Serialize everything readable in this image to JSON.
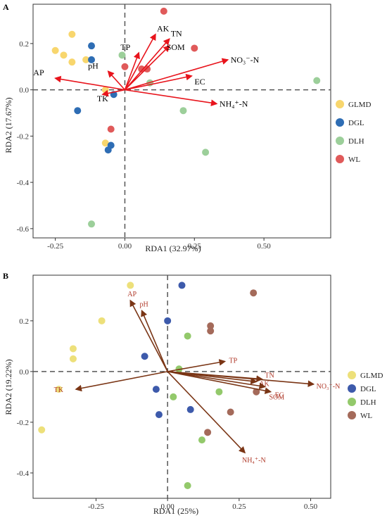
{
  "chart_data": [
    {
      "type": "scatter",
      "panel_label": "A",
      "xlabel": "RDA1 (32.97%)",
      "ylabel": "RDA2 (17.67%)",
      "xlim": [
        -0.33,
        0.74
      ],
      "ylim": [
        -0.64,
        0.37
      ],
      "xticks": [
        -0.25,
        0.0,
        0.25,
        0.5
      ],
      "xtick_labels": [
        "-0.25",
        "0.00",
        "0.25",
        "0.50"
      ],
      "yticks": [
        -0.6,
        -0.4,
        -0.2,
        0.0,
        0.2
      ],
      "ytick_labels": [
        "-0.6",
        "-0.4",
        "-0.2",
        "0.0",
        "0.2"
      ],
      "reference_lines": {
        "x": 0,
        "y": 0,
        "style": "dashed"
      },
      "legend_position": "right",
      "arrow_color": "#e8141c",
      "series": [
        {
          "name": "GLMD",
          "color": "#f8d66d",
          "points": [
            [
              -0.19,
              0.24
            ],
            [
              -0.25,
              0.17
            ],
            [
              -0.22,
              0.15
            ],
            [
              -0.19,
              0.12
            ],
            [
              -0.14,
              0.13
            ],
            [
              -0.07,
              -0.23
            ],
            [
              -0.07,
              0.0
            ]
          ]
        },
        {
          "name": "DGL",
          "color": "#2e6db4",
          "points": [
            [
              -0.12,
              0.19
            ],
            [
              -0.12,
              0.13
            ],
            [
              -0.04,
              -0.02
            ],
            [
              -0.17,
              -0.09
            ],
            [
              -0.05,
              -0.24
            ],
            [
              -0.06,
              -0.26
            ]
          ]
        },
        {
          "name": "DLH",
          "color": "#9ccf9a",
          "points": [
            [
              -0.01,
              0.15
            ],
            [
              0.09,
              0.03
            ],
            [
              0.21,
              -0.09
            ],
            [
              0.29,
              -0.27
            ],
            [
              0.69,
              0.04
            ],
            [
              -0.12,
              -0.58
            ]
          ]
        },
        {
          "name": "WL",
          "color": "#e05a5a",
          "points": [
            [
              0.14,
              0.34
            ],
            [
              0.25,
              0.18
            ],
            [
              0.06,
              0.09
            ],
            [
              0.08,
              0.09
            ],
            [
              0.0,
              0.1
            ],
            [
              -0.05,
              -0.17
            ]
          ]
        }
      ],
      "arrows": [
        {
          "label": "AK",
          "x": 0.11,
          "y": 0.24
        },
        {
          "label": "TN",
          "x": 0.16,
          "y": 0.22
        },
        {
          "label": "SOM",
          "x": 0.16,
          "y": 0.19
        },
        {
          "label": "TP",
          "x": 0.05,
          "y": 0.16
        },
        {
          "label": "NO₃⁻-N",
          "x": 0.37,
          "y": 0.13
        },
        {
          "label": "pH",
          "x": -0.06,
          "y": 0.08
        },
        {
          "label": "EC",
          "x": 0.24,
          "y": 0.06
        },
        {
          "label": "AP",
          "x": -0.25,
          "y": 0.05
        },
        {
          "label": "TK",
          "x": -0.08,
          "y": -0.02
        },
        {
          "label": "NH₄⁺-N",
          "x": 0.33,
          "y": -0.06
        }
      ]
    },
    {
      "type": "scatter",
      "panel_label": "B",
      "xlabel": "RDA1 (25%)",
      "ylabel": "RDA2 (19.22%)",
      "xlim": [
        -0.47,
        0.57
      ],
      "ylim": [
        -0.5,
        0.38
      ],
      "xticks": [
        -0.25,
        0.0,
        0.25,
        0.5
      ],
      "xtick_labels": [
        "-0.25",
        "0.00",
        "0.25",
        "0.50"
      ],
      "yticks": [
        -0.4,
        -0.2,
        0.0,
        0.2
      ],
      "ytick_labels": [
        "-0.4",
        "-0.2",
        "0.0",
        "0.2"
      ],
      "reference_lines": {
        "x": 0,
        "y": 0,
        "style": "dashed"
      },
      "legend_position": "right",
      "arrow_color": "#7a3515",
      "series": [
        {
          "name": "GLMD",
          "color": "#ede07a",
          "points": [
            [
              -0.13,
              0.34
            ],
            [
              -0.23,
              0.2
            ],
            [
              -0.33,
              0.09
            ],
            [
              -0.33,
              0.05
            ],
            [
              -0.38,
              -0.07
            ],
            [
              -0.44,
              -0.23
            ]
          ]
        },
        {
          "name": "DGL",
          "color": "#3d5aab",
          "points": [
            [
              0.05,
              0.34
            ],
            [
              0.0,
              0.2
            ],
            [
              -0.08,
              0.06
            ],
            [
              -0.04,
              -0.07
            ],
            [
              -0.03,
              -0.17
            ],
            [
              0.08,
              -0.15
            ]
          ]
        },
        {
          "name": "DLH",
          "color": "#93c96b",
          "points": [
            [
              0.07,
              0.14
            ],
            [
              0.04,
              0.01
            ],
            [
              0.18,
              -0.08
            ],
            [
              0.02,
              -0.1
            ],
            [
              0.12,
              -0.27
            ],
            [
              0.07,
              -0.45
            ]
          ]
        },
        {
          "name": "WL",
          "color": "#a46a5a",
          "points": [
            [
              0.3,
              0.31
            ],
            [
              0.15,
              0.18
            ],
            [
              0.15,
              0.16
            ],
            [
              0.31,
              -0.08
            ],
            [
              0.22,
              -0.16
            ],
            [
              0.14,
              -0.24
            ]
          ]
        }
      ],
      "arrows": [
        {
          "label": "AP",
          "x": -0.13,
          "y": 0.28
        },
        {
          "label": "pH",
          "x": -0.09,
          "y": 0.24
        },
        {
          "label": "TP",
          "x": 0.2,
          "y": 0.04
        },
        {
          "label": "TN",
          "x": 0.33,
          "y": -0.03
        },
        {
          "label": "AK",
          "x": 0.31,
          "y": -0.04
        },
        {
          "label": "NO₃⁻-N",
          "x": 0.51,
          "y": -0.05
        },
        {
          "label": "EC",
          "x": 0.36,
          "y": -0.08
        },
        {
          "label": "SOM",
          "x": 0.34,
          "y": -0.06
        },
        {
          "label": "TK",
          "x": -0.32,
          "y": -0.07
        },
        {
          "label": "NH₄⁺-N",
          "x": 0.27,
          "y": -0.32
        }
      ]
    }
  ]
}
